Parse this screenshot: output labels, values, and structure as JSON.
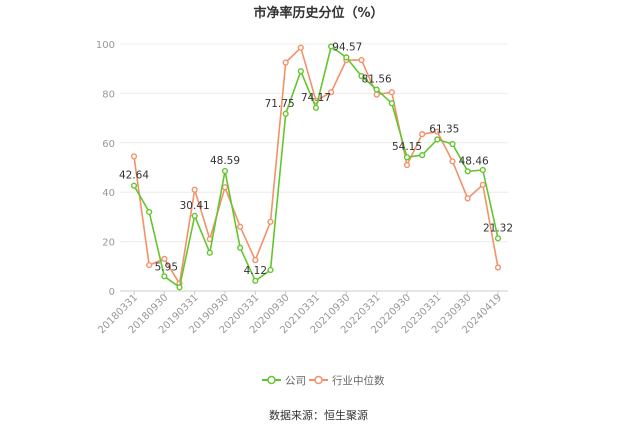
{
  "source": "数据来源：恒生聚源",
  "chart_data": {
    "type": "line",
    "title": "市净率历史分位（%）",
    "x_tick_labels": [
      "20180331",
      "20180930",
      "20190331",
      "20190930",
      "20200331",
      "20200930",
      "20210331",
      "20210930",
      "20220331",
      "20220930",
      "20230331",
      "20230930",
      "20240419"
    ],
    "y_ticks": [
      "0",
      "20",
      "40",
      "60",
      "80",
      "100"
    ],
    "ylim": [
      0,
      100
    ],
    "grid": true,
    "legend_position": "bottom",
    "series": [
      {
        "name": "公司",
        "color": "#63c62f",
        "values": [
          42.64,
          32,
          5.95,
          1.5,
          30.41,
          15.5,
          48.59,
          17.5,
          4.12,
          8.5,
          71.75,
          89,
          74.17,
          99,
          94.57,
          87,
          81.56,
          76,
          54.15,
          55,
          61.35,
          59.5,
          48.46,
          49,
          21.32
        ],
        "point_labels": [
          "42.64",
          "",
          "5.95",
          "",
          "30.41",
          "",
          "48.59",
          "",
          "4.12",
          "",
          "71.75",
          "",
          "74.17",
          "",
          "94.57",
          "",
          "81.56",
          "",
          "54.15",
          "",
          "61.35",
          "",
          "48.46",
          "",
          "21.32"
        ]
      },
      {
        "name": "行业中位数",
        "color": "#f3916a",
        "values": [
          54.5,
          10.5,
          13,
          3,
          41,
          21,
          42,
          26,
          12.5,
          28,
          92.5,
          98.5,
          77,
          80.5,
          93.5,
          93.5,
          79.5,
          80.5,
          51,
          63.5,
          64.5,
          52.5,
          37.5,
          43,
          9.5
        ]
      }
    ]
  }
}
